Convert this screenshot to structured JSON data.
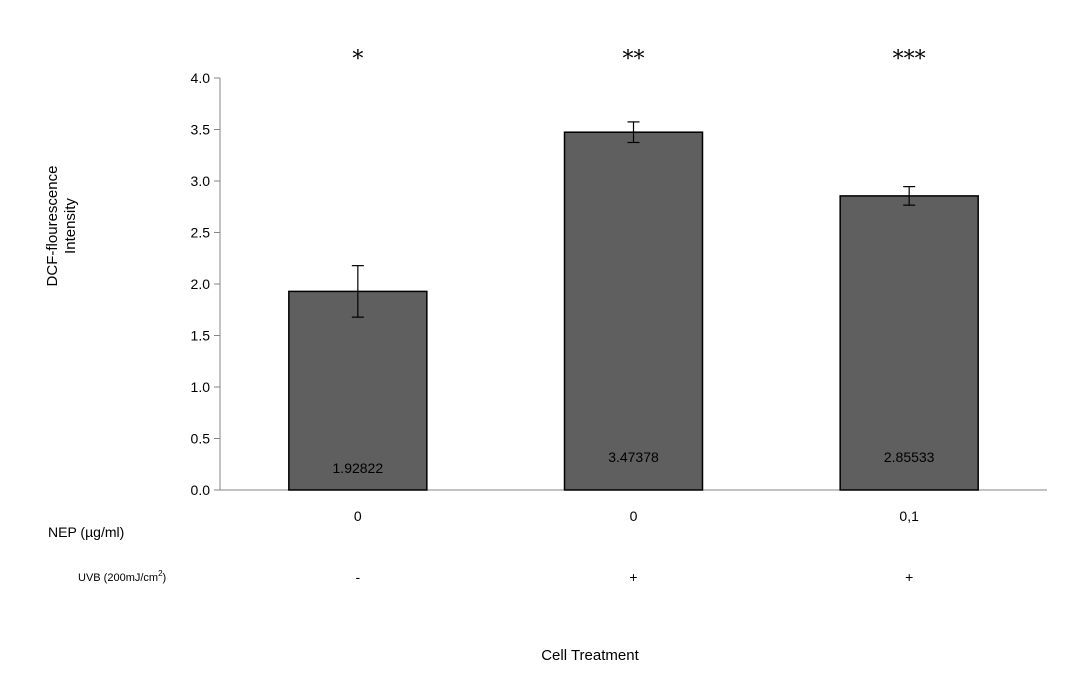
{
  "chart_data": {
    "type": "bar",
    "ylabel_lines": [
      "DCF-flourescence",
      "Intensity"
    ],
    "xlabel": "Cell Treatment",
    "ylim": [
      0,
      4.0
    ],
    "yticks": [
      "0.0",
      "0.5",
      "1.0",
      "1.5",
      "2.0",
      "2.5",
      "3.0",
      "3.5",
      "4.0"
    ],
    "grid": false,
    "bar_color": "#5f5f5f",
    "values": [
      1.92822,
      3.47378,
      2.85533
    ],
    "value_labels": [
      "1.92822",
      "3.47378",
      "2.85533"
    ],
    "error": [
      0.25,
      0.1,
      0.09
    ],
    "significance": [
      "*",
      "**",
      "***"
    ],
    "conditions": [
      {
        "label": "NEP (µg/ml)",
        "values": [
          "0",
          "0",
          "0,1"
        ]
      },
      {
        "label_main": "UVB (200mJ/cm",
        "label_sup": "2",
        "label_end": ")",
        "values": [
          "-",
          "+",
          "+"
        ]
      }
    ]
  }
}
